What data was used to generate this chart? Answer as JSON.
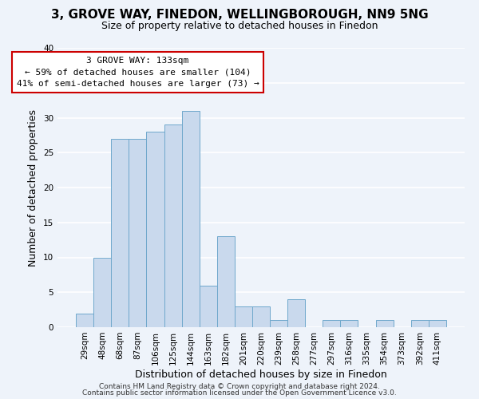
{
  "title1": "3, GROVE WAY, FINEDON, WELLINGBOROUGH, NN9 5NG",
  "title2": "Size of property relative to detached houses in Finedon",
  "xlabel": "Distribution of detached houses by size in Finedon",
  "ylabel": "Number of detached properties",
  "categories": [
    "29sqm",
    "48sqm",
    "68sqm",
    "87sqm",
    "106sqm",
    "125sqm",
    "144sqm",
    "163sqm",
    "182sqm",
    "201sqm",
    "220sqm",
    "239sqm",
    "258sqm",
    "277sqm",
    "297sqm",
    "316sqm",
    "335sqm",
    "354sqm",
    "373sqm",
    "392sqm",
    "411sqm"
  ],
  "values": [
    2,
    10,
    27,
    27,
    28,
    29,
    31,
    6,
    13,
    3,
    3,
    1,
    4,
    0,
    1,
    1,
    0,
    1,
    0,
    1,
    1
  ],
  "bar_color": "#c9d9ed",
  "bar_edge_color": "#6fa8cc",
  "annotation_line1": "3 GROVE WAY: 133sqm",
  "annotation_line2": "← 59% of detached houses are smaller (104)",
  "annotation_line3": "41% of semi-detached houses are larger (73) →",
  "box_facecolor": "#ffffff",
  "box_edgecolor": "#cc0000",
  "ylim": [
    0,
    40
  ],
  "yticks": [
    0,
    5,
    10,
    15,
    20,
    25,
    30,
    35,
    40
  ],
  "background_color": "#eef3fa",
  "footer1": "Contains HM Land Registry data © Crown copyright and database right 2024.",
  "footer2": "Contains public sector information licensed under the Open Government Licence v3.0.",
  "title1_fontsize": 11,
  "title2_fontsize": 9,
  "xlabel_fontsize": 9,
  "ylabel_fontsize": 9,
  "tick_fontsize": 7.5,
  "annotation_fontsize": 8,
  "footer_fontsize": 6.5,
  "annotation_bar_index": 6
}
